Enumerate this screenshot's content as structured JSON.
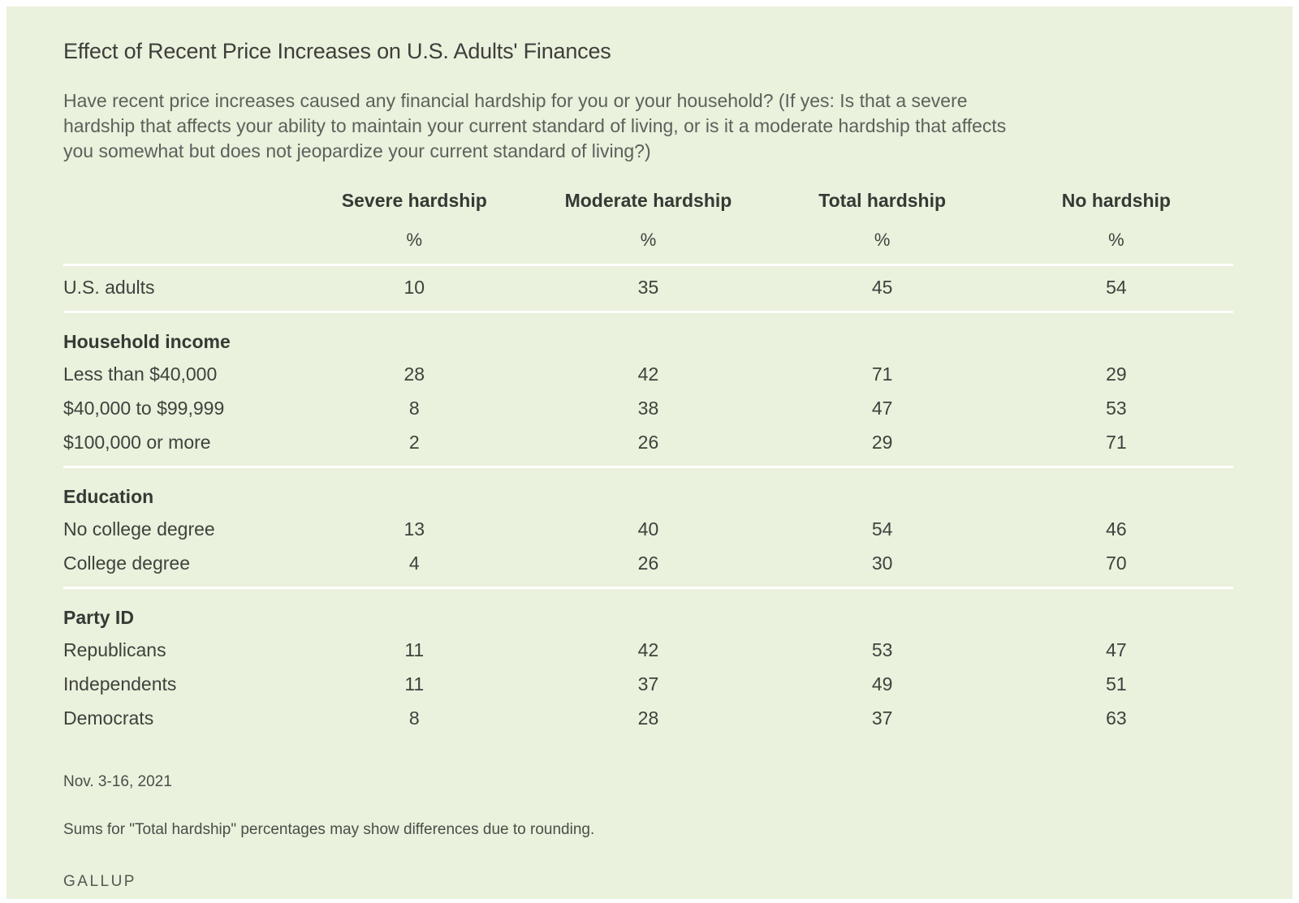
{
  "header": {
    "title": "Effect of Recent Price Increases on U.S. Adults' Finances",
    "subtitle": "Have recent price increases caused any financial hardship for you or your household? (If yes: Is that a severe hardship that affects your ability to maintain your current standard of living, or is it a moderate hardship that affects you somewhat but does not jeopardize your current standard of living?)"
  },
  "chart_data": {
    "type": "table",
    "columns": [
      "Severe hardship",
      "Moderate hardship",
      "Total hardship",
      "No hardship"
    ],
    "unit": "%",
    "groups": [
      {
        "header": null,
        "rows": [
          {
            "label": "U.S. adults",
            "values": [
              10,
              35,
              45,
              54
            ]
          }
        ]
      },
      {
        "header": "Household income",
        "rows": [
          {
            "label": "Less than $40,000",
            "values": [
              28,
              42,
              71,
              29
            ]
          },
          {
            "label": "$40,000 to $99,999",
            "values": [
              8,
              38,
              47,
              53
            ]
          },
          {
            "label": "$100,000 or more",
            "values": [
              2,
              26,
              29,
              71
            ]
          }
        ]
      },
      {
        "header": "Education",
        "rows": [
          {
            "label": "No college degree",
            "values": [
              13,
              40,
              54,
              46
            ]
          },
          {
            "label": "College degree",
            "values": [
              4,
              26,
              30,
              70
            ]
          }
        ]
      },
      {
        "header": "Party ID",
        "rows": [
          {
            "label": "Republicans",
            "values": [
              11,
              42,
              53,
              47
            ]
          },
          {
            "label": "Independents",
            "values": [
              11,
              37,
              49,
              51
            ]
          },
          {
            "label": "Democrats",
            "values": [
              8,
              28,
              37,
              63
            ]
          }
        ]
      }
    ]
  },
  "footer": {
    "date": "Nov. 3-16, 2021",
    "note": "Sums for \"Total hardship\" percentages may show differences due to rounding.",
    "brand": "GALLUP"
  },
  "colors": {
    "page_background": "#ffffff",
    "card_background": "#eaf1dc",
    "divider": "#ffffff",
    "title_text": "#3c3f3a",
    "body_text": "#3e423d",
    "muted_text": "#5d615c"
  }
}
